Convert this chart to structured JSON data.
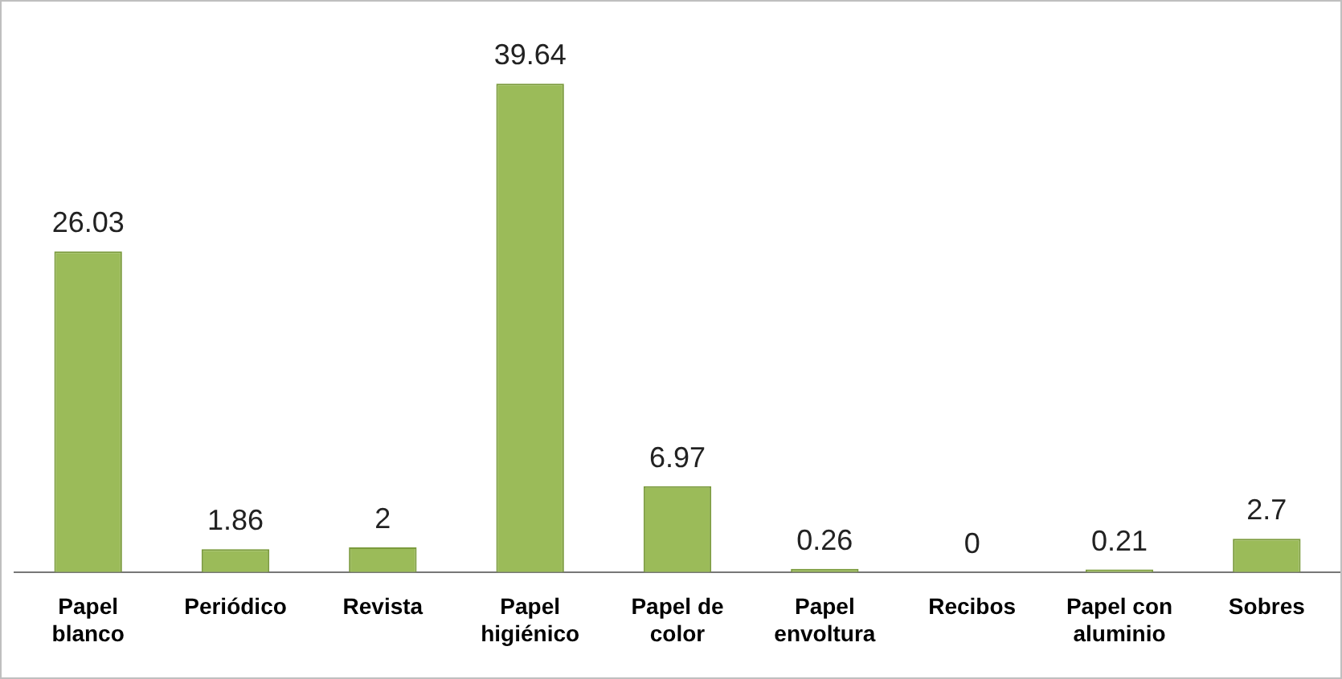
{
  "chart_data": {
    "type": "bar",
    "categories": [
      "Papel blanco",
      "Periódico",
      "Revista",
      "Papel higiénico",
      "Papel de color",
      "Papel envoltura",
      "Recibos",
      "Papel con aluminio",
      "Sobres"
    ],
    "values": [
      26.03,
      1.86,
      2,
      39.64,
      6.97,
      0.26,
      0,
      0.21,
      2.7
    ],
    "color": "#9bbb59",
    "data_labels": true,
    "grid": false,
    "legend": false,
    "tick_labels": "x"
  }
}
